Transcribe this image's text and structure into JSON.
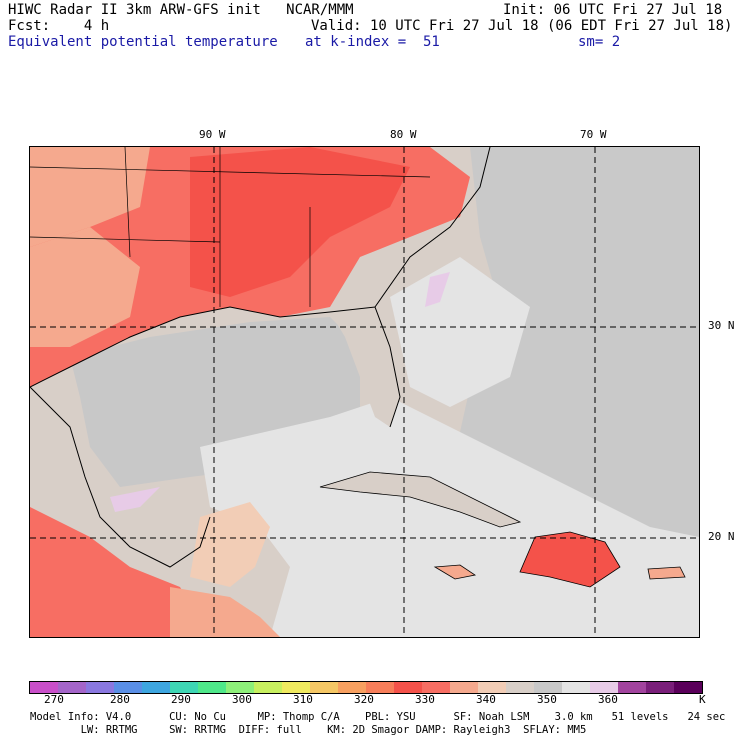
{
  "header": {
    "line1_left": "HIWC Radar II 3km ARW-GFS init   NCAR/MMM",
    "line1_right": "Init: 06 UTC Fri 27 Jul 18",
    "line2_left": "Fcst:    4 h",
    "line2_right": "Valid: 10 UTC Fri 27 Jul 18 (06 EDT Fri 27 Jul 18)",
    "field": "Equivalent potential temperature",
    "level": "at k-index =  51",
    "smooth": "sm= 2"
  },
  "map": {
    "lon_labels": [
      "90 W",
      "80 W",
      "70 W"
    ],
    "lat_labels": [
      "30 N",
      "20 N"
    ]
  },
  "colorbar": {
    "colors": [
      "#c94fc9",
      "#a465c9",
      "#8a78e0",
      "#5a8fe6",
      "#3ea6e0",
      "#3ed6b4",
      "#4fe88a",
      "#8ef07a",
      "#c8f060",
      "#f0ea60",
      "#f5c765",
      "#f7a060",
      "#f77e5a",
      "#f4524a",
      "#f76e63",
      "#f5a98e",
      "#f2cdb6",
      "#d8cfc8",
      "#c8c8c8",
      "#e4e4e4",
      "#e7cbe7",
      "#a2449e",
      "#7a1f7a",
      "#5a005a"
    ],
    "tick_labels": [
      "270",
      "280",
      "290",
      "300",
      "310",
      "320",
      "330",
      "340",
      "350",
      "360",
      "K"
    ]
  },
  "model_info": {
    "line1": "Model Info: V4.0      CU: No Cu     MP: Thomp C/A    PBL: YSU      SF: Noah LSM    3.0 km   51 levels   24 sec",
    "line2": "        LW: RRTMG     SW: RRTMG  DIFF: full    KM: 2D Smagor DAMP: Rayleigh3  SFLAY: MM5"
  }
}
